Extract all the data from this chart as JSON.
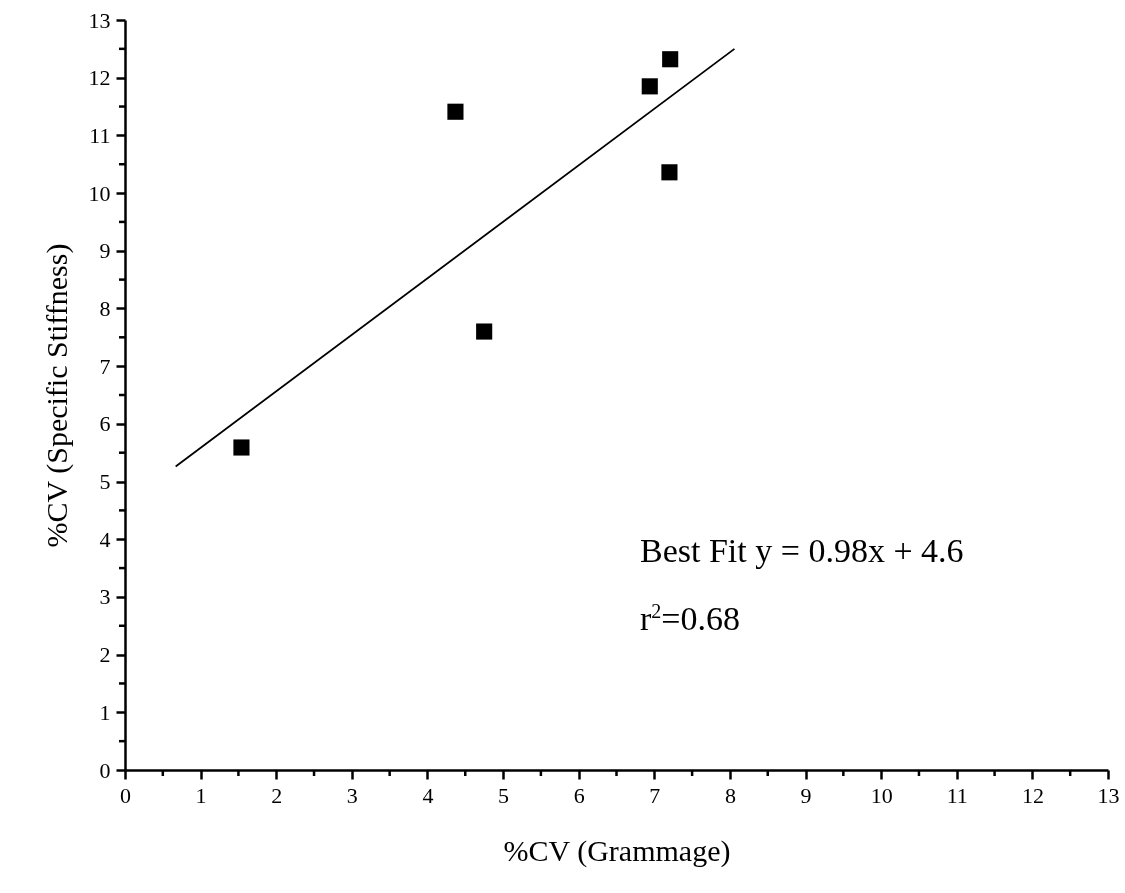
{
  "chart_data": {
    "type": "scatter",
    "xlabel": "%CV (Grammage)",
    "ylabel": "%CV (Specific Stiffness)",
    "xlim": [
      0,
      13
    ],
    "ylim": [
      0,
      13
    ],
    "xticks": [
      0,
      {
        "value": 0.5,
        "label": null
      },
      1,
      {
        "value": 1.5,
        "label": null
      },
      2,
      {
        "value": 2.5,
        "label": null
      },
      3,
      {
        "value": 3.5,
        "label": null
      },
      4,
      {
        "value": 4.5,
        "label": null
      },
      5,
      {
        "value": 5.5,
        "label": null
      },
      6,
      {
        "value": 6.5,
        "label": null
      },
      7,
      {
        "value": 7.5,
        "label": null
      },
      8,
      {
        "value": 8.5,
        "label": null
      },
      9,
      {
        "value": 9.5,
        "label": null
      },
      10,
      {
        "value": 10.5,
        "label": null
      },
      11,
      {
        "value": 11.5,
        "label": null
      },
      12,
      {
        "value": 12.5,
        "label": null
      },
      13
    ],
    "yticks": [
      0,
      {
        "value": 0.5,
        "label": null
      },
      1,
      {
        "value": 1.5,
        "label": null
      },
      2,
      {
        "value": 2.5,
        "label": null
      },
      3,
      {
        "value": 3.5,
        "label": null
      },
      4,
      {
        "value": 4.5,
        "label": null
      },
      5,
      {
        "value": 5.5,
        "label": null
      },
      6,
      {
        "value": 6.5,
        "label": null
      },
      7,
      {
        "value": 7.5,
        "label": null
      },
      8,
      {
        "value": 8.5,
        "label": null
      },
      9,
      {
        "value": 9.5,
        "label": null
      },
      10,
      {
        "value": 10.5,
        "label": null
      },
      11,
      {
        "value": 11.5,
        "label": null
      },
      12,
      {
        "value": 12.5,
        "label": null
      },
      13
    ],
    "grid": false,
    "marker": "square",
    "series": [
      {
        "type": "scatter",
        "color": "#000000",
        "x": [
          1.54,
          4.37,
          4.75,
          6.94,
          7.21,
          7.2
        ],
        "values": [
          5.59,
          11.41,
          7.6,
          11.85,
          12.32,
          10.36
        ]
      },
      {
        "type": "line",
        "color": "#000000",
        "marker": "none",
        "line_style": "solid",
        "x": [
          0.67,
          8.06
        ],
        "values": [
          5.26,
          12.5
        ]
      }
    ],
    "annotations": [
      "Best Fit y = 0.98x + 4.6",
      "r$^{2}$=0.68"
    ]
  }
}
